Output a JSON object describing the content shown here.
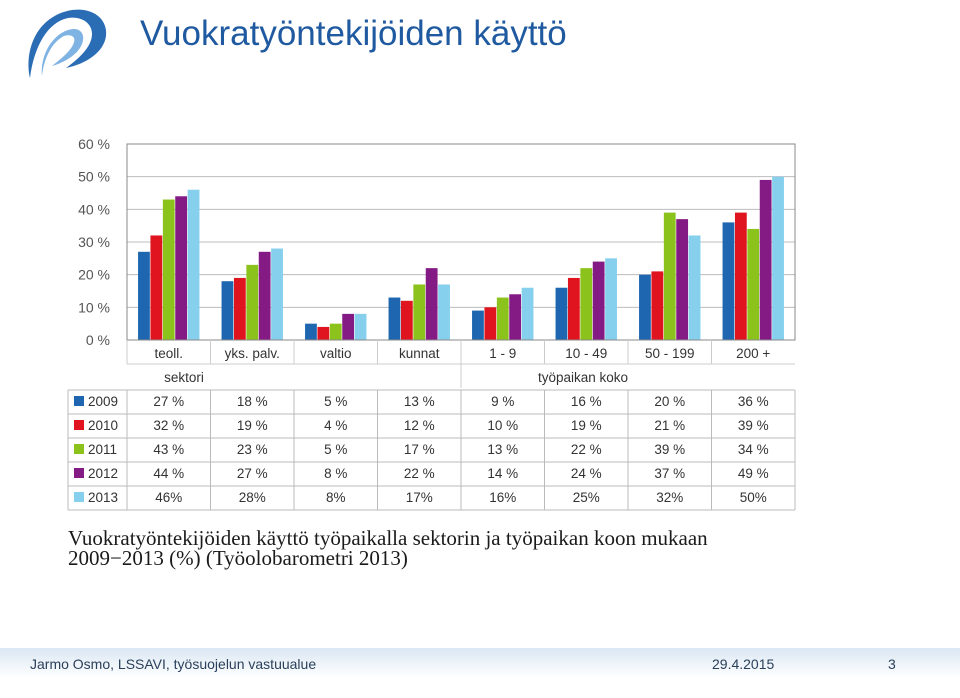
{
  "slide": {
    "title": "Vuokratyöntekijöiden käyttö",
    "caption": "Vuokratyöntekijöiden käyttö työpaikalla sektorin ja työpaikan koon mukaan 2009−2013 (%) (Työolobarometri 2013)",
    "footer_author": "Jarmo Osmo, LSSAVI, työsuojelun vastuualue",
    "footer_date": "29.4.2015",
    "footer_page": "3",
    "logo_icon": "lssavi-logo-icon"
  },
  "chart_data": {
    "type": "bar",
    "title": "",
    "xlabel": "",
    "ylabel": "",
    "ylim": [
      0,
      60
    ],
    "y_ticks": [
      "0 %",
      "10 %",
      "20 %",
      "30 %",
      "40 %",
      "50 %",
      "60 %"
    ],
    "grid": true,
    "categories": [
      "teoll.",
      "yks. palv.",
      "valtio",
      "kunnat",
      "1 - 9",
      "10 - 49",
      "50 - 199",
      "200 +"
    ],
    "groups": [
      {
        "label": "sektori",
        "span": 4
      },
      {
        "label": "työpaikan koko",
        "span": 4
      }
    ],
    "series": [
      {
        "name": "2009",
        "color": "#1f66b0",
        "values": [
          27,
          18,
          5,
          13,
          9,
          16,
          20,
          36
        ],
        "labels": [
          "27 %",
          "18 %",
          "5 %",
          "13 %",
          "9 %",
          "16 %",
          "20 %",
          "36 %"
        ]
      },
      {
        "name": "2010",
        "color": "#e0141e",
        "values": [
          32,
          19,
          4,
          12,
          10,
          19,
          21,
          39
        ],
        "labels": [
          "32 %",
          "19 %",
          "4 %",
          "12 %",
          "10 %",
          "19 %",
          "21 %",
          "39 %"
        ]
      },
      {
        "name": "2011",
        "color": "#8cc21c",
        "values": [
          43,
          23,
          5,
          17,
          13,
          22,
          39,
          34
        ],
        "labels": [
          "43 %",
          "23 %",
          "5 %",
          "17 %",
          "13 %",
          "22 %",
          "39 %",
          "34 %"
        ]
      },
      {
        "name": "2012",
        "color": "#841a84",
        "values": [
          44,
          27,
          8,
          22,
          14,
          24,
          37,
          49
        ],
        "labels": [
          "44 %",
          "27 %",
          "8 %",
          "22 %",
          "14 %",
          "24 %",
          "37 %",
          "49 %"
        ]
      },
      {
        "name": "2013",
        "color": "#86d0ee",
        "values": [
          46,
          28,
          8,
          17,
          16,
          25,
          32,
          50
        ],
        "labels": [
          "46%",
          "28%",
          "8%",
          "17%",
          "16%",
          "25%",
          "32%",
          "50%"
        ]
      }
    ]
  }
}
